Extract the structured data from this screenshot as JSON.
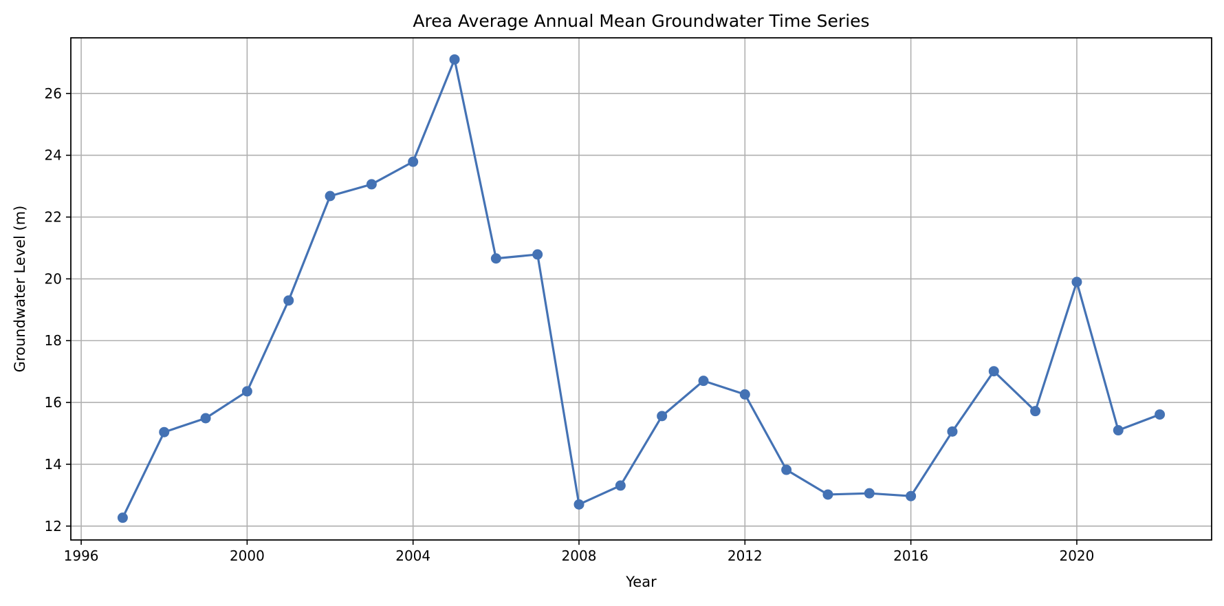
{
  "chart_data": {
    "type": "line",
    "title": "Area Average Annual Mean Groundwater Time Series",
    "xlabel": "Year",
    "ylabel": "Groundwater Level (m)",
    "xlim": [
      1995.75,
      2023.25
    ],
    "ylim": [
      11.55,
      27.8
    ],
    "xticks": [
      1996,
      2000,
      2004,
      2008,
      2012,
      2016,
      2020
    ],
    "yticks": [
      12,
      14,
      16,
      18,
      20,
      22,
      24,
      26
    ],
    "grid": true,
    "legend": "none",
    "series": [
      {
        "color": "#4472b4",
        "marker": "circle",
        "x": [
          1997,
          1998,
          1999,
          2000,
          2001,
          2002,
          2003,
          2004,
          2005,
          2006,
          2007,
          2008,
          2009,
          2010,
          2011,
          2012,
          2013,
          2014,
          2015,
          2016,
          2017,
          2018,
          2019,
          2020,
          2021,
          2022
        ],
        "y": [
          12.27,
          15.04,
          15.49,
          16.36,
          19.3,
          22.68,
          23.06,
          23.79,
          27.1,
          20.66,
          20.79,
          12.7,
          13.31,
          15.56,
          16.7,
          16.26,
          13.82,
          13.02,
          13.06,
          12.97,
          15.06,
          17.01,
          15.72,
          19.9,
          15.1,
          15.61
        ]
      }
    ]
  }
}
